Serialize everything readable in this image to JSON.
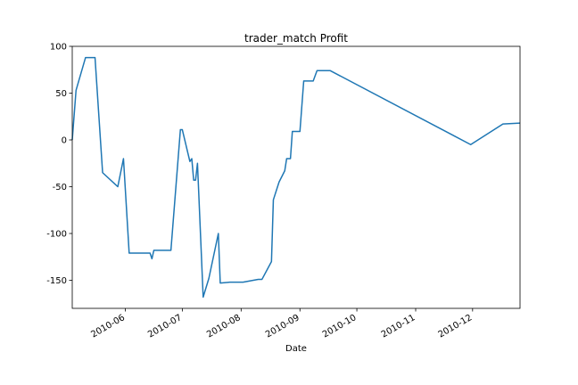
{
  "chart_data": {
    "type": "line",
    "title": "trader_match Profit",
    "xlabel": "Date",
    "ylabel": "",
    "xlim": [
      "2010-05-04",
      "2010-12-26"
    ],
    "ylim": [
      -180,
      100
    ],
    "y_ticks": [
      100,
      50,
      0,
      -50,
      -100,
      -150
    ],
    "x_ticks": [
      {
        "date": "2010-06-01",
        "label": "2010-06"
      },
      {
        "date": "2010-07-01",
        "label": "2010-07"
      },
      {
        "date": "2010-08-01",
        "label": "2010-08"
      },
      {
        "date": "2010-09-01",
        "label": "2010-09"
      },
      {
        "date": "2010-10-01",
        "label": "2010-10"
      },
      {
        "date": "2010-11-01",
        "label": "2010-11"
      },
      {
        "date": "2010-12-01",
        "label": "2010-12"
      }
    ],
    "grid": false,
    "colors": {
      "line": "#1f77b4"
    },
    "series": [
      {
        "name": "",
        "points": [
          {
            "x": "2010-05-04",
            "y": 0
          },
          {
            "x": "2010-05-06",
            "y": 53
          },
          {
            "x": "2010-05-11",
            "y": 88
          },
          {
            "x": "2010-05-16",
            "y": 88
          },
          {
            "x": "2010-05-20",
            "y": -35
          },
          {
            "x": "2010-05-28",
            "y": -50
          },
          {
            "x": "2010-05-31",
            "y": -20
          },
          {
            "x": "2010-06-03",
            "y": -121
          },
          {
            "x": "2010-06-14",
            "y": -121
          },
          {
            "x": "2010-06-15",
            "y": -127
          },
          {
            "x": "2010-06-16",
            "y": -118
          },
          {
            "x": "2010-06-25",
            "y": -118
          },
          {
            "x": "2010-06-30",
            "y": 11
          },
          {
            "x": "2010-07-01",
            "y": 11
          },
          {
            "x": "2010-07-05",
            "y": -23
          },
          {
            "x": "2010-07-06",
            "y": -20
          },
          {
            "x": "2010-07-07",
            "y": -43
          },
          {
            "x": "2010-07-08",
            "y": -43
          },
          {
            "x": "2010-07-09",
            "y": -25
          },
          {
            "x": "2010-07-12",
            "y": -168
          },
          {
            "x": "2010-07-15",
            "y": -148
          },
          {
            "x": "2010-07-20",
            "y": -100
          },
          {
            "x": "2010-07-21",
            "y": -153
          },
          {
            "x": "2010-07-26",
            "y": -152
          },
          {
            "x": "2010-08-02",
            "y": -152
          },
          {
            "x": "2010-08-10",
            "y": -149
          },
          {
            "x": "2010-08-12",
            "y": -149
          },
          {
            "x": "2010-08-17",
            "y": -130
          },
          {
            "x": "2010-08-18",
            "y": -64
          },
          {
            "x": "2010-08-21",
            "y": -45
          },
          {
            "x": "2010-08-24",
            "y": -33
          },
          {
            "x": "2010-08-25",
            "y": -20
          },
          {
            "x": "2010-08-27",
            "y": -20
          },
          {
            "x": "2010-08-28",
            "y": 9
          },
          {
            "x": "2010-09-01",
            "y": 9
          },
          {
            "x": "2010-09-03",
            "y": 63
          },
          {
            "x": "2010-09-08",
            "y": 63
          },
          {
            "x": "2010-09-10",
            "y": 74
          },
          {
            "x": "2010-09-17",
            "y": 74
          },
          {
            "x": "2010-11-30",
            "y": -5
          },
          {
            "x": "2010-12-17",
            "y": 17
          },
          {
            "x": "2010-12-26",
            "y": 18
          }
        ]
      }
    ]
  }
}
